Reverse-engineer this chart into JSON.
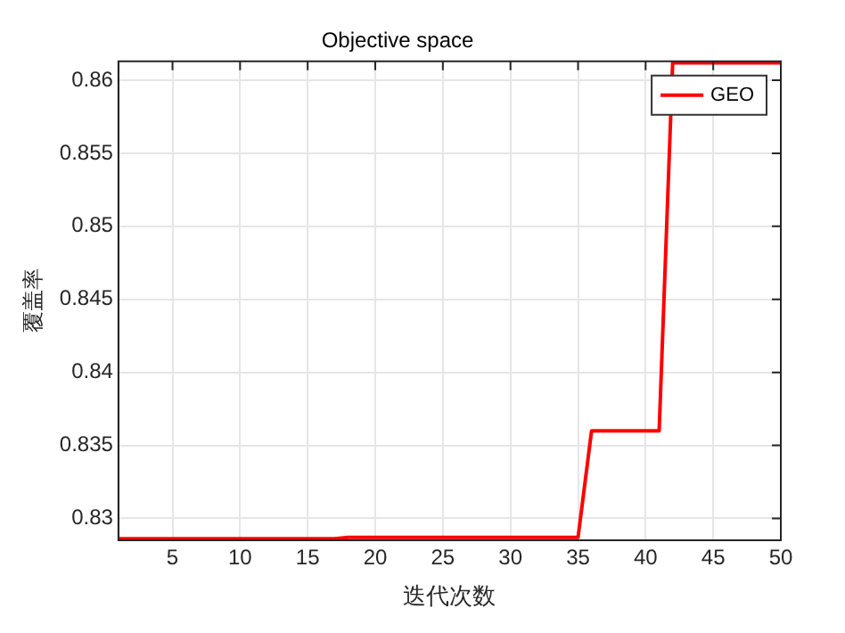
{
  "chart_data": {
    "type": "line",
    "title": "Objective space",
    "xlabel": "迭代次数",
    "ylabel": "覆盖率",
    "x": [
      1,
      17,
      18,
      35,
      36,
      41,
      42,
      50
    ],
    "series": [
      {
        "name": "GEO",
        "color": "#ff0000",
        "values": [
          0.8286,
          0.8286,
          0.8287,
          0.8287,
          0.836,
          0.836,
          0.8612,
          0.8612
        ]
      }
    ],
    "xlim": [
      1,
      50
    ],
    "xticks": [
      5,
      10,
      15,
      20,
      25,
      30,
      35,
      40,
      45,
      50
    ],
    "ylim": [
      0.8285,
      0.8613
    ],
    "yticks": [
      0.83,
      0.835,
      0.84,
      0.845,
      0.85,
      0.855,
      0.86
    ],
    "grid": true,
    "legend": "top right",
    "line_style": "solid",
    "marker": "none"
  }
}
